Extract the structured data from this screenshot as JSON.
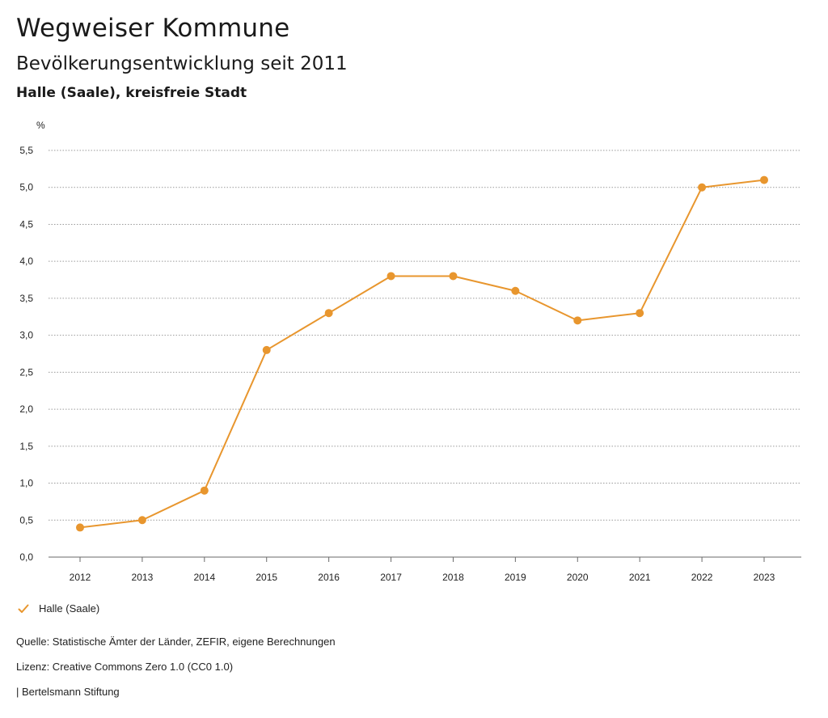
{
  "header": {
    "title": "Wegweiser Kommune",
    "subtitle": "Bevölkerungsentwicklung seit 2011",
    "region": "Halle (Saale), kreisfreie Stadt"
  },
  "chart_data": {
    "type": "line",
    "unit": "%",
    "categories": [
      "2012",
      "2013",
      "2014",
      "2015",
      "2016",
      "2017",
      "2018",
      "2019",
      "2020",
      "2021",
      "2022",
      "2023"
    ],
    "series": [
      {
        "name": "Halle (Saale)",
        "color": "#e8962e",
        "values": [
          0.4,
          0.5,
          0.9,
          2.8,
          3.3,
          3.8,
          3.8,
          3.6,
          3.2,
          3.3,
          5.0,
          5.1
        ]
      }
    ],
    "yticks": [
      "0,0",
      "0,5",
      "1,0",
      "1,5",
      "2,0",
      "2,5",
      "3,0",
      "3,5",
      "4,0",
      "4,5",
      "5,0",
      "5,5"
    ],
    "ylim": [
      0,
      5.5
    ],
    "grid": true,
    "legend": "bottom-left"
  },
  "legend": {
    "label": "Halle (Saale)",
    "icon": "check-icon"
  },
  "footer": {
    "source": "Quelle: Statistische Ämter der Länder, ZEFIR, eigene Berechnungen",
    "license": "Lizenz: Creative Commons Zero 1.0 (CC0 1.0)",
    "publisher": "| Bertelsmann Stiftung"
  }
}
